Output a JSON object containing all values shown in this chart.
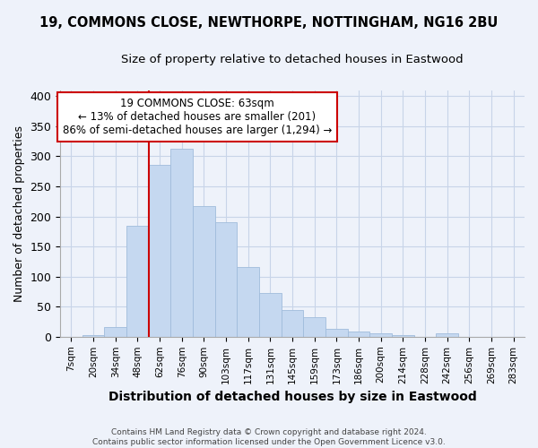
{
  "title": "19, COMMONS CLOSE, NEWTHORPE, NOTTINGHAM, NG16 2BU",
  "subtitle": "Size of property relative to detached houses in Eastwood",
  "xlabel": "Distribution of detached houses by size in Eastwood",
  "ylabel": "Number of detached properties",
  "footer_line1": "Contains HM Land Registry data © Crown copyright and database right 2024.",
  "footer_line2": "Contains public sector information licensed under the Open Government Licence v3.0.",
  "bin_labels": [
    "7sqm",
    "20sqm",
    "34sqm",
    "48sqm",
    "62sqm",
    "76sqm",
    "90sqm",
    "103sqm",
    "117sqm",
    "131sqm",
    "145sqm",
    "159sqm",
    "173sqm",
    "186sqm",
    "200sqm",
    "214sqm",
    "228sqm",
    "242sqm",
    "256sqm",
    "269sqm",
    "283sqm"
  ],
  "bar_heights": [
    0,
    2,
    16,
    185,
    285,
    313,
    217,
    191,
    116,
    72,
    45,
    33,
    13,
    8,
    6,
    2,
    0,
    5,
    0,
    0,
    0
  ],
  "bar_color": "#c5d8f0",
  "bar_edge_color": "#a0bcdc",
  "highlight_x_label": "62sqm",
  "highlight_line_color": "#cc0000",
  "annotation_title": "19 COMMONS CLOSE: 63sqm",
  "annotation_line1": "← 13% of detached houses are smaller (201)",
  "annotation_line2": "86% of semi-detached houses are larger (1,294) →",
  "annotation_box_edge_color": "#cc0000",
  "ylim": [
    0,
    410
  ],
  "yticks": [
    0,
    50,
    100,
    150,
    200,
    250,
    300,
    350,
    400
  ],
  "grid_color": "#c8d4e8",
  "background_color": "#eef2fa"
}
